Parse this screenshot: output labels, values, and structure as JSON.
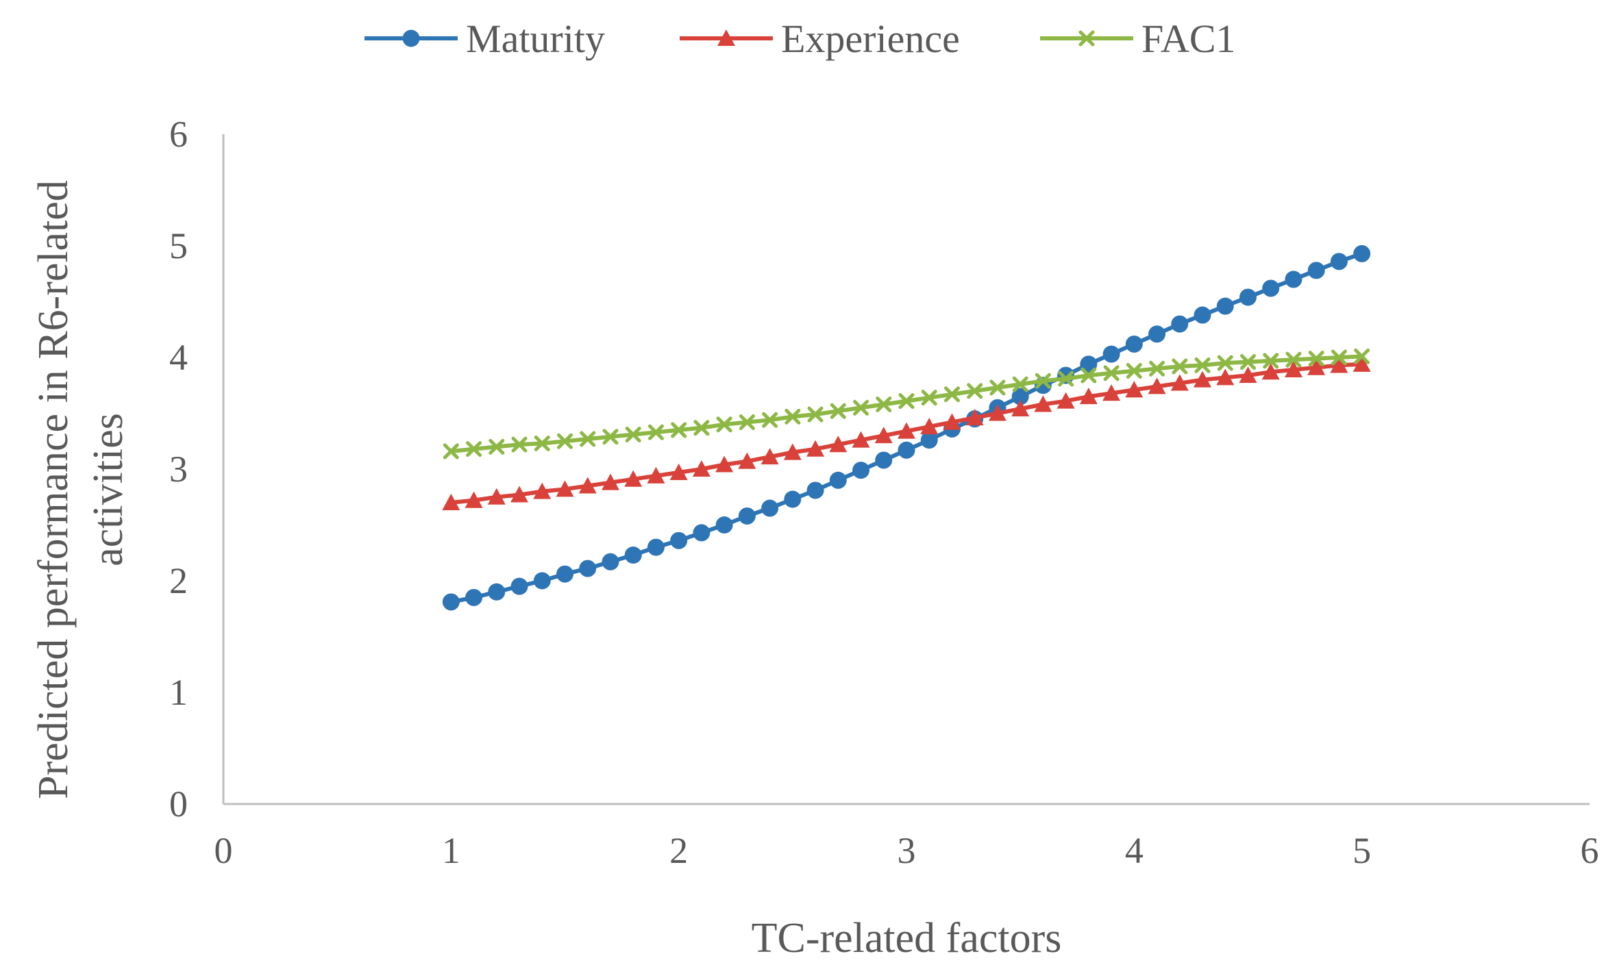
{
  "chart_data": {
    "type": "scatter",
    "title": "",
    "xlabel": "TC-related factors",
    "ylabel_lines": [
      "Predicted performance in R6-related",
      "activities"
    ],
    "xlim": [
      0,
      6
    ],
    "ylim": [
      0,
      6
    ],
    "x_ticks": [
      "0",
      "1",
      "2",
      "3",
      "4",
      "5",
      "6"
    ],
    "y_ticks": [
      "0",
      "1",
      "2",
      "3",
      "4",
      "5",
      "6"
    ],
    "grid": false,
    "legend_position": "top",
    "x": [
      1.0,
      1.1,
      1.2,
      1.3,
      1.4,
      1.5,
      1.6,
      1.7,
      1.8,
      1.9,
      2.0,
      2.1,
      2.2,
      2.3,
      2.4,
      2.5,
      2.6,
      2.7,
      2.8,
      2.9,
      3.0,
      3.1,
      3.2,
      3.3,
      3.4,
      3.5,
      3.6,
      3.7,
      3.8,
      3.9,
      4.0,
      4.1,
      4.2,
      4.3,
      4.4,
      4.5,
      4.6,
      4.7,
      4.8,
      4.9,
      5.0
    ],
    "series": [
      {
        "name": "Maturity",
        "color": "#2E75B6",
        "marker": "circle",
        "values": [
          1.81,
          1.85,
          1.9,
          1.95,
          2.0,
          2.06,
          2.11,
          2.17,
          2.23,
          2.3,
          2.36,
          2.43,
          2.5,
          2.58,
          2.65,
          2.73,
          2.81,
          2.9,
          2.99,
          3.08,
          3.17,
          3.26,
          3.36,
          3.45,
          3.55,
          3.65,
          3.75,
          3.84,
          3.94,
          4.03,
          4.12,
          4.21,
          4.3,
          4.38,
          4.46,
          4.54,
          4.62,
          4.7,
          4.78,
          4.86,
          4.93
        ]
      },
      {
        "name": "Experience",
        "color": "#D9423A",
        "marker": "triangle",
        "values": [
          2.7,
          2.72,
          2.75,
          2.77,
          2.8,
          2.82,
          2.85,
          2.88,
          2.91,
          2.94,
          2.97,
          3.0,
          3.04,
          3.07,
          3.11,
          3.15,
          3.18,
          3.22,
          3.26,
          3.3,
          3.34,
          3.38,
          3.42,
          3.46,
          3.5,
          3.54,
          3.58,
          3.61,
          3.65,
          3.68,
          3.71,
          3.74,
          3.77,
          3.8,
          3.82,
          3.84,
          3.87,
          3.89,
          3.91,
          3.93,
          3.94
        ]
      },
      {
        "name": "FAC1",
        "color": "#8DB845",
        "marker": "x",
        "values": [
          3.16,
          3.18,
          3.2,
          3.22,
          3.23,
          3.25,
          3.27,
          3.29,
          3.31,
          3.33,
          3.35,
          3.37,
          3.4,
          3.42,
          3.44,
          3.47,
          3.49,
          3.52,
          3.55,
          3.58,
          3.61,
          3.64,
          3.67,
          3.7,
          3.73,
          3.76,
          3.79,
          3.81,
          3.84,
          3.86,
          3.88,
          3.9,
          3.92,
          3.93,
          3.95,
          3.96,
          3.97,
          3.98,
          3.99,
          4.0,
          4.01
        ]
      }
    ]
  }
}
